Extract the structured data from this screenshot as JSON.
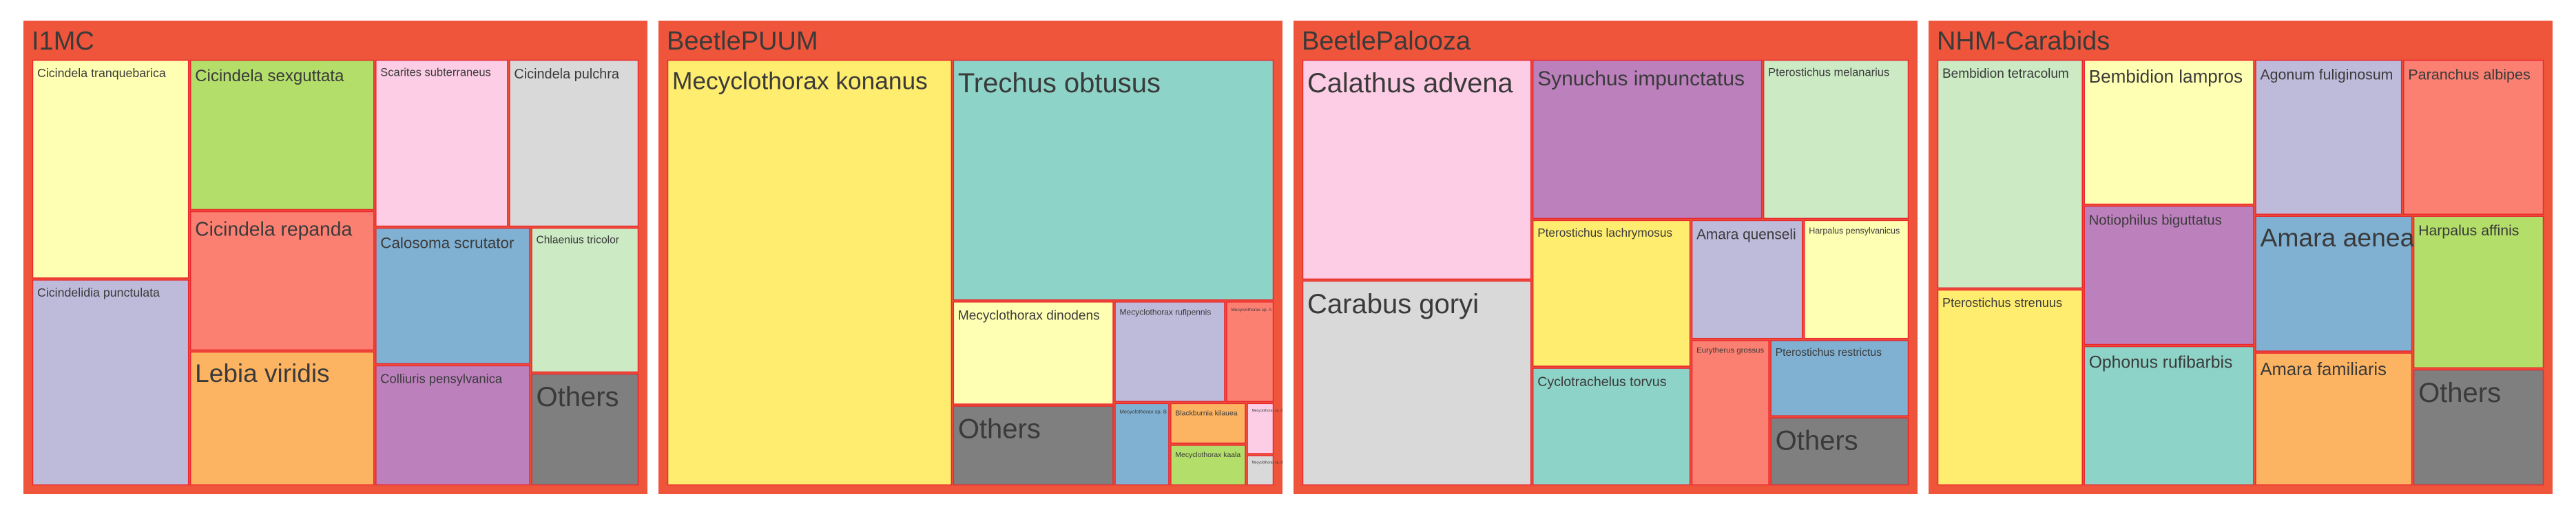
{
  "colors": {
    "background": "#ffffff",
    "panel_fill": "#ef553b",
    "tile_border": "#e9272e",
    "label": "#3a3a3a"
  },
  "chart_data": {
    "type": "treemap",
    "panels": [
      {
        "name": "I1MC",
        "tiles": [
          {
            "label": "Cicindela tranquebarica",
            "color": "#ffffb3",
            "value": 6.8
          },
          {
            "label": "Cicindelidia punctulata",
            "color": "#bebada",
            "value": 6.4
          },
          {
            "label": "Cicindela repanda",
            "color": "#fb8072",
            "value": 5.1
          },
          {
            "label": "Calosoma scrutator",
            "color": "#80b1d3",
            "value": 4.2
          },
          {
            "label": "Lebia viridis",
            "color": "#fdb462",
            "value": 4.9
          },
          {
            "label": "Cicindela sexguttata",
            "color": "#b3de69",
            "value": 5.5
          },
          {
            "label": "Cicindela pulchra",
            "color": "#d9d9d9",
            "value": 4.3
          },
          {
            "label": "Colliuris pensylvanica",
            "color": "#bc80bd",
            "value": 3.7
          },
          {
            "label": "Scarites subterraneus",
            "color": "#fccde5",
            "value": 4.4
          },
          {
            "label": "Chlaenius tricolor",
            "color": "#ccebc5",
            "value": 3.1
          },
          {
            "label": "Others",
            "color": "#7f7f7f",
            "value": 2.4
          }
        ]
      },
      {
        "name": "BeetlePUUM",
        "tiles": [
          {
            "label": "Mecyclothorax konanus",
            "color": "#ffed6f",
            "value": 42.0
          },
          {
            "label": "Trechus obtusus",
            "color": "#8dd3c7",
            "value": 26.8
          },
          {
            "label": "Mecyclothorax dinodens",
            "color": "#ffffb3",
            "value": 5.8
          },
          {
            "label": "Others",
            "color": "#7f7f7f",
            "value": 4.5
          },
          {
            "label": "Mecyclothorax rufipennis",
            "color": "#bebada",
            "value": 3.9
          },
          {
            "label": "Mecyclothorax sp. A",
            "color": "#fb8072",
            "value": 1.7
          },
          {
            "label": "Mecyclothorax sp. B",
            "color": "#80b1d3",
            "value": 1.6
          },
          {
            "label": "Blackburnia kilauea",
            "color": "#fdb462",
            "value": 1.1
          },
          {
            "label": "Mecyclothorax kaala",
            "color": "#b3de69",
            "value": 1.1
          },
          {
            "label": "Mecyclothorax sp. C",
            "color": "#fccde5",
            "value": 0.5
          },
          {
            "label": "Mecyclothorax sp. D",
            "color": "#d9d9d9",
            "value": 0.3
          }
        ]
      },
      {
        "name": "BeetlePalooza",
        "tiles": [
          {
            "label": "Calathus advena",
            "color": "#fccde5",
            "value": 13.2
          },
          {
            "label": "Carabus goryi",
            "color": "#d9d9d9",
            "value": 12.3
          },
          {
            "label": "Synuchus impunctatus",
            "color": "#bc80bd",
            "value": 9.6
          },
          {
            "label": "Pterostichus melanarius",
            "color": "#ccebc5",
            "value": 6.1
          },
          {
            "label": "Pterostichus lachrymosus",
            "color": "#ffed6f",
            "value": 6.1
          },
          {
            "label": "Cyclotrachelus torvus",
            "color": "#8dd3c7",
            "value": 4.9
          },
          {
            "label": "Harpalus pensylvanicus",
            "color": "#ffffb3",
            "value": 3.3
          },
          {
            "label": "Amara quenseli",
            "color": "#bebada",
            "value": 3.5
          },
          {
            "label": "Others",
            "color": "#7f7f7f",
            "value": 2.5
          },
          {
            "label": "Eurytherus grossus",
            "color": "#fb8072",
            "value": 3.0
          },
          {
            "label": "Pterostichus restrictus",
            "color": "#80b1d3",
            "value": 2.8
          }
        ]
      },
      {
        "name": "NHM-Carabids",
        "tiles": [
          {
            "label": "Notiophilus biguttatus",
            "color": "#bc80bd",
            "value": 5.0
          },
          {
            "label": "Bembidion tetracolum",
            "color": "#ccebc5",
            "value": 7.0
          },
          {
            "label": "Pterostichus strenuus",
            "color": "#ffed6f",
            "value": 6.0
          },
          {
            "label": "Ophonus rufibarbis",
            "color": "#8dd3c7",
            "value": 5.0
          },
          {
            "label": "Bembidion lampros",
            "color": "#ffffb3",
            "value": 5.2
          },
          {
            "label": "Agonum fuliginosum",
            "color": "#bebada",
            "value": 4.8
          },
          {
            "label": "Amara aenea",
            "color": "#80b1d3",
            "value": 4.5
          },
          {
            "label": "Amara familiaris",
            "color": "#fdb462",
            "value": 4.4
          },
          {
            "label": "Paranchus albipes",
            "color": "#fb8072",
            "value": 4.6
          },
          {
            "label": "Harpalus affinis",
            "color": "#b3de69",
            "value": 4.2
          },
          {
            "label": "Others",
            "color": "#7f7f7f",
            "value": 3.2
          }
        ]
      }
    ]
  }
}
